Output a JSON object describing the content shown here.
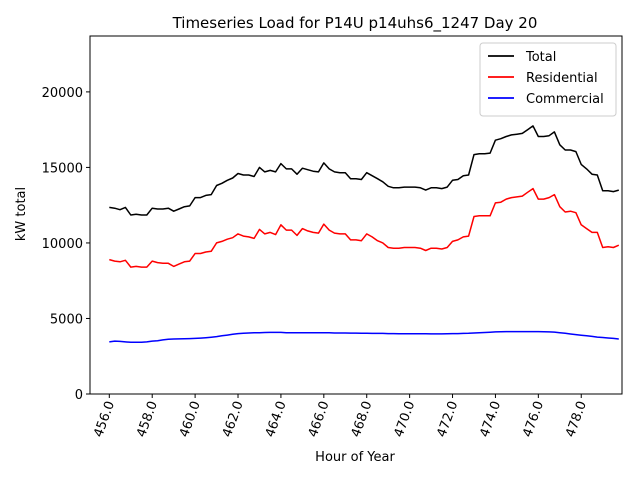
{
  "chart_data": {
    "type": "line",
    "title": "Timeseries Load for P14U p14uhs6_1247  Day 20",
    "xlabel": "Hour of Year",
    "ylabel": "kW total",
    "xlim": [
      455.1,
      479.9
    ],
    "ylim": [
      0,
      23700
    ],
    "x_ticks": [
      456,
      458,
      460,
      462,
      464,
      466,
      468,
      470,
      472,
      474,
      476,
      478
    ],
    "x_tick_labels": [
      "456.0",
      "458.0",
      "460.0",
      "462.0",
      "464.0",
      "466.0",
      "468.0",
      "470.0",
      "472.0",
      "474.0",
      "476.0",
      "478.0"
    ],
    "y_ticks": [
      0,
      5000,
      10000,
      15000,
      20000
    ],
    "y_tick_labels": [
      "0",
      "5000",
      "10000",
      "15000",
      "20000"
    ],
    "legend_position": "top-right",
    "x": [
      456.0,
      456.25,
      456.5,
      456.75,
      457.0,
      457.25,
      457.5,
      457.75,
      458.0,
      458.25,
      458.5,
      458.75,
      459.0,
      459.25,
      459.5,
      459.75,
      460.0,
      460.25,
      460.5,
      460.75,
      461.0,
      461.25,
      461.5,
      461.75,
      462.0,
      462.25,
      462.5,
      462.75,
      463.0,
      463.25,
      463.5,
      463.75,
      464.0,
      464.25,
      464.5,
      464.75,
      465.0,
      465.25,
      465.5,
      465.75,
      466.0,
      466.25,
      466.5,
      466.75,
      467.0,
      467.25,
      467.5,
      467.75,
      468.0,
      468.25,
      468.5,
      468.75,
      469.0,
      469.25,
      469.5,
      469.75,
      470.0,
      470.25,
      470.5,
      470.75,
      471.0,
      471.25,
      471.5,
      471.75,
      472.0,
      472.25,
      472.5,
      472.75,
      473.0,
      473.25,
      473.5,
      473.75,
      474.0,
      474.25,
      474.5,
      474.75,
      475.0,
      475.25,
      475.5,
      475.75,
      476.0,
      476.25,
      476.5,
      476.75,
      477.0,
      477.25,
      477.5,
      477.75,
      478.0,
      478.25,
      478.5,
      478.75,
      479.0,
      479.25,
      479.5,
      479.75
    ],
    "series": [
      {
        "name": "Total",
        "color": "#000000",
        "values": [
          12350,
          12300,
          12200,
          12350,
          11850,
          11900,
          11850,
          11850,
          12300,
          12250,
          12250,
          12300,
          12100,
          12250,
          12400,
          12450,
          13000,
          13000,
          13150,
          13200,
          13800,
          13950,
          14150,
          14300,
          14600,
          14500,
          14500,
          14400,
          15000,
          14700,
          14800,
          14700,
          15250,
          14900,
          14900,
          14550,
          14950,
          14850,
          14750,
          14700,
          15300,
          14900,
          14700,
          14650,
          14650,
          14250,
          14250,
          14200,
          14650,
          14450,
          14250,
          14050,
          13750,
          13650,
          13650,
          13700,
          13700,
          13700,
          13650,
          13500,
          13650,
          13650,
          13600,
          13700,
          14150,
          14200,
          14450,
          14500,
          15850,
          15900,
          15900,
          15950,
          16800,
          16900,
          17050,
          17150,
          17200,
          17250,
          17500,
          17750,
          17050,
          17050,
          17100,
          17350,
          16500,
          16150,
          16150,
          16050,
          15200,
          14900,
          14550,
          14500,
          13450,
          13450,
          13400,
          13500
        ]
      },
      {
        "name": "Residential",
        "color": "#ff0000",
        "values": [
          8900,
          8800,
          8750,
          8850,
          8400,
          8450,
          8400,
          8400,
          8800,
          8700,
          8650,
          8650,
          8450,
          8600,
          8750,
          8800,
          9300,
          9300,
          9400,
          9450,
          10000,
          10100,
          10250,
          10350,
          10600,
          10450,
          10400,
          10300,
          10900,
          10600,
          10700,
          10550,
          11200,
          10850,
          10850,
          10500,
          10950,
          10800,
          10700,
          10650,
          11250,
          10850,
          10650,
          10600,
          10600,
          10200,
          10200,
          10150,
          10600,
          10400,
          10150,
          10000,
          9700,
          9650,
          9650,
          9700,
          9700,
          9700,
          9650,
          9500,
          9650,
          9650,
          9600,
          9700,
          10100,
          10200,
          10400,
          10450,
          11750,
          11800,
          11800,
          11800,
          12650,
          12700,
          12900,
          13000,
          13050,
          13100,
          13350,
          13600,
          12900,
          12900,
          13000,
          13200,
          12400,
          12050,
          12100,
          12000,
          11200,
          10950,
          10700,
          10700,
          9700,
          9750,
          9700,
          9850
        ]
      },
      {
        "name": "Commercial",
        "color": "#0000ff",
        "values": [
          3450,
          3500,
          3480,
          3450,
          3420,
          3420,
          3430,
          3450,
          3500,
          3530,
          3580,
          3620,
          3640,
          3650,
          3660,
          3670,
          3680,
          3700,
          3730,
          3760,
          3800,
          3850,
          3900,
          3950,
          4000,
          4020,
          4040,
          4050,
          4060,
          4070,
          4080,
          4080,
          4080,
          4060,
          4050,
          4050,
          4050,
          4050,
          4050,
          4050,
          4050,
          4050,
          4040,
          4040,
          4040,
          4030,
          4030,
          4020,
          4020,
          4010,
          4010,
          4010,
          4000,
          4000,
          3990,
          3990,
          3990,
          3990,
          3990,
          3990,
          3980,
          3980,
          3980,
          3990,
          4000,
          4000,
          4010,
          4020,
          4040,
          4050,
          4070,
          4090,
          4110,
          4120,
          4130,
          4130,
          4130,
          4130,
          4130,
          4130,
          4130,
          4120,
          4110,
          4100,
          4060,
          4020,
          3970,
          3930,
          3890,
          3850,
          3810,
          3770,
          3740,
          3710,
          3680,
          3640
        ]
      }
    ]
  }
}
